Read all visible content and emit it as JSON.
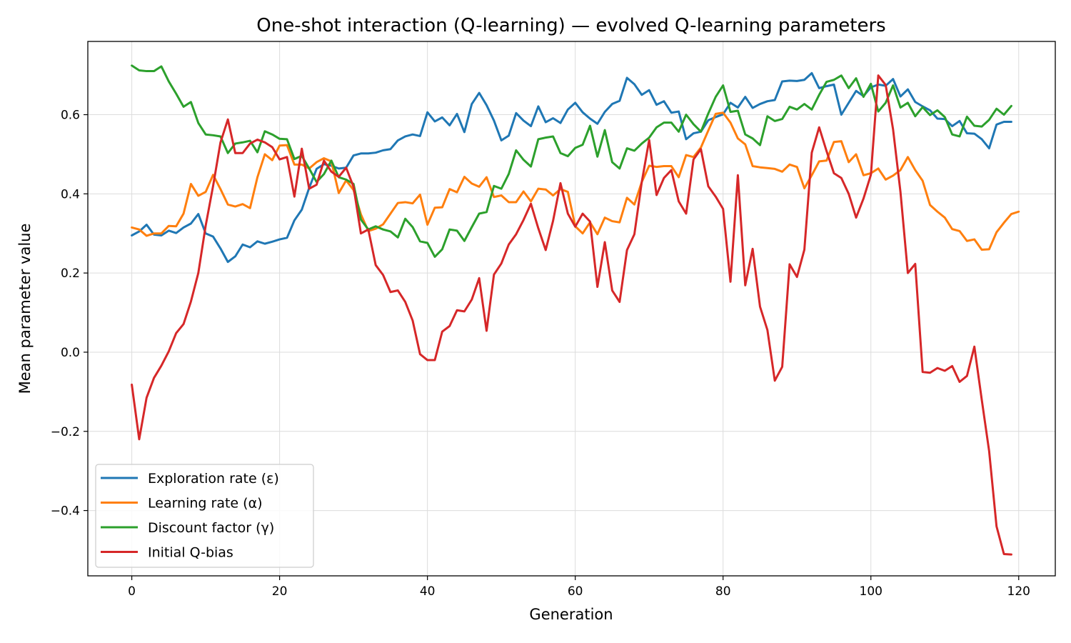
{
  "chart_data": {
    "type": "line",
    "title": "One-shot interaction (Q-learning) — evolved Q-learning parameters",
    "xlabel": "Generation",
    "ylabel": "Mean parameter value",
    "xlim": [
      -5.95,
      124.95
    ],
    "ylim": [
      -0.565,
      0.785
    ],
    "xticks": [
      0,
      20,
      40,
      60,
      80,
      100,
      120
    ],
    "yticks": [
      -0.4,
      -0.2,
      0.0,
      0.2,
      0.4,
      0.6
    ],
    "ytick_labels": [
      "−0.4",
      "−0.2",
      "0.0",
      "0.2",
      "0.4",
      "0.6"
    ],
    "grid": true,
    "legend_position": "lower-left",
    "series": [
      {
        "name": "Exploration rate (ε)",
        "color": "#1f77b4",
        "values": [
          0.295,
          0.305,
          0.322,
          0.297,
          0.295,
          0.307,
          0.301,
          0.315,
          0.325,
          0.349,
          0.3,
          0.292,
          0.262,
          0.228,
          0.242,
          0.272,
          0.265,
          0.28,
          0.274,
          0.279,
          0.285,
          0.289,
          0.333,
          0.36,
          0.415,
          0.463,
          0.475,
          0.471,
          0.464,
          0.466,
          0.497,
          0.502,
          0.502,
          0.504,
          0.51,
          0.513,
          0.535,
          0.545,
          0.55,
          0.546,
          0.606,
          0.583,
          0.593,
          0.573,
          0.602,
          0.556,
          0.627,
          0.655,
          0.624,
          0.585,
          0.535,
          0.547,
          0.604,
          0.585,
          0.571,
          0.621,
          0.581,
          0.591,
          0.579,
          0.613,
          0.63,
          0.606,
          0.59,
          0.577,
          0.607,
          0.627,
          0.635,
          0.693,
          0.677,
          0.65,
          0.662,
          0.625,
          0.634,
          0.605,
          0.608,
          0.538,
          0.553,
          0.557,
          0.586,
          0.594,
          0.601,
          0.63,
          0.618,
          0.645,
          0.617,
          0.627,
          0.634,
          0.637,
          0.684,
          0.686,
          0.685,
          0.688,
          0.705,
          0.667,
          0.672,
          0.676,
          0.6,
          0.63,
          0.66,
          0.647,
          0.669,
          0.676,
          0.673,
          0.69,
          0.646,
          0.664,
          0.632,
          0.621,
          0.611,
          0.59,
          0.589,
          0.571,
          0.584,
          0.553,
          0.552,
          0.538,
          0.515,
          0.575,
          0.582,
          0.582
        ]
      },
      {
        "name": "Learning rate (α)",
        "color": "#ff7f0e",
        "values": [
          0.315,
          0.31,
          0.294,
          0.3,
          0.3,
          0.319,
          0.318,
          0.35,
          0.425,
          0.395,
          0.405,
          0.448,
          0.412,
          0.373,
          0.368,
          0.374,
          0.364,
          0.442,
          0.5,
          0.485,
          0.522,
          0.523,
          0.474,
          0.474,
          0.464,
          0.48,
          0.49,
          0.482,
          0.402,
          0.434,
          0.41,
          0.348,
          0.306,
          0.312,
          0.323,
          0.35,
          0.377,
          0.379,
          0.376,
          0.398,
          0.322,
          0.365,
          0.366,
          0.412,
          0.404,
          0.443,
          0.426,
          0.418,
          0.442,
          0.392,
          0.396,
          0.379,
          0.379,
          0.406,
          0.381,
          0.413,
          0.411,
          0.396,
          0.412,
          0.405,
          0.318,
          0.3,
          0.328,
          0.298,
          0.34,
          0.331,
          0.328,
          0.39,
          0.373,
          0.43,
          0.471,
          0.468,
          0.47,
          0.47,
          0.442,
          0.498,
          0.493,
          0.517,
          0.56,
          0.602,
          0.605,
          0.58,
          0.54,
          0.525,
          0.47,
          0.467,
          0.465,
          0.463,
          0.456,
          0.474,
          0.468,
          0.414,
          0.447,
          0.482,
          0.484,
          0.531,
          0.533,
          0.48,
          0.5,
          0.447,
          0.452,
          0.464,
          0.436,
          0.446,
          0.46,
          0.493,
          0.46,
          0.433,
          0.372,
          0.355,
          0.34,
          0.311,
          0.306,
          0.281,
          0.285,
          0.259,
          0.26,
          0.303,
          0.327,
          0.349,
          0.355
        ]
      },
      {
        "name": "Discount factor (γ)",
        "color": "#2ca02c",
        "values": [
          0.724,
          0.712,
          0.71,
          0.71,
          0.722,
          0.684,
          0.653,
          0.62,
          0.632,
          0.579,
          0.55,
          0.548,
          0.545,
          0.503,
          0.527,
          0.53,
          0.534,
          0.505,
          0.558,
          0.55,
          0.539,
          0.538,
          0.488,
          0.496,
          0.464,
          0.43,
          0.45,
          0.484,
          0.442,
          0.436,
          0.425,
          0.335,
          0.31,
          0.318,
          0.31,
          0.305,
          0.29,
          0.337,
          0.316,
          0.28,
          0.276,
          0.241,
          0.26,
          0.31,
          0.307,
          0.281,
          0.316,
          0.35,
          0.354,
          0.42,
          0.413,
          0.45,
          0.51,
          0.486,
          0.469,
          0.538,
          0.542,
          0.545,
          0.503,
          0.495,
          0.516,
          0.524,
          0.572,
          0.494,
          0.561,
          0.48,
          0.464,
          0.515,
          0.509,
          0.527,
          0.542,
          0.568,
          0.58,
          0.58,
          0.557,
          0.6,
          0.576,
          0.557,
          0.603,
          0.645,
          0.674,
          0.607,
          0.61,
          0.55,
          0.54,
          0.523,
          0.596,
          0.584,
          0.589,
          0.62,
          0.613,
          0.627,
          0.613,
          0.65,
          0.683,
          0.688,
          0.699,
          0.667,
          0.692,
          0.645,
          0.678,
          0.608,
          0.63,
          0.674,
          0.618,
          0.63,
          0.596,
          0.619,
          0.599,
          0.611,
          0.594,
          0.55,
          0.545,
          0.595,
          0.572,
          0.57,
          0.587,
          0.615,
          0.6,
          0.622
        ]
      },
      {
        "name": "Initial Q-bias",
        "color": "#d62728",
        "values": [
          -0.082,
          -0.22,
          -0.115,
          -0.065,
          -0.034,
          0.002,
          0.048,
          0.071,
          0.128,
          0.2,
          0.32,
          0.42,
          0.53,
          0.588,
          0.503,
          0.503,
          0.527,
          0.537,
          0.53,
          0.518,
          0.487,
          0.493,
          0.393,
          0.514,
          0.413,
          0.423,
          0.484,
          0.456,
          0.443,
          0.466,
          0.418,
          0.3,
          0.31,
          0.22,
          0.195,
          0.152,
          0.156,
          0.127,
          0.08,
          -0.005,
          -0.02,
          -0.02,
          0.052,
          0.066,
          0.106,
          0.103,
          0.133,
          0.187,
          0.054,
          0.196,
          0.224,
          0.272,
          0.298,
          0.334,
          0.375,
          0.313,
          0.258,
          0.332,
          0.427,
          0.35,
          0.317,
          0.35,
          0.33,
          0.165,
          0.278,
          0.156,
          0.127,
          0.258,
          0.298,
          0.43,
          0.536,
          0.397,
          0.44,
          0.46,
          0.381,
          0.35,
          0.487,
          0.513,
          0.419,
          0.393,
          0.362,
          0.178,
          0.447,
          0.169,
          0.261,
          0.115,
          0.056,
          -0.072,
          -0.037,
          0.222,
          0.19,
          0.259,
          0.504,
          0.568,
          0.508,
          0.452,
          0.44,
          0.4,
          0.34,
          0.388,
          0.448,
          0.699,
          0.675,
          0.563,
          0.405,
          0.2,
          0.223,
          -0.05,
          -0.052,
          -0.04,
          -0.047,
          -0.035,
          -0.075,
          -0.06,
          0.014,
          -0.12,
          -0.25,
          -0.44,
          -0.51,
          -0.511
        ]
      }
    ]
  }
}
